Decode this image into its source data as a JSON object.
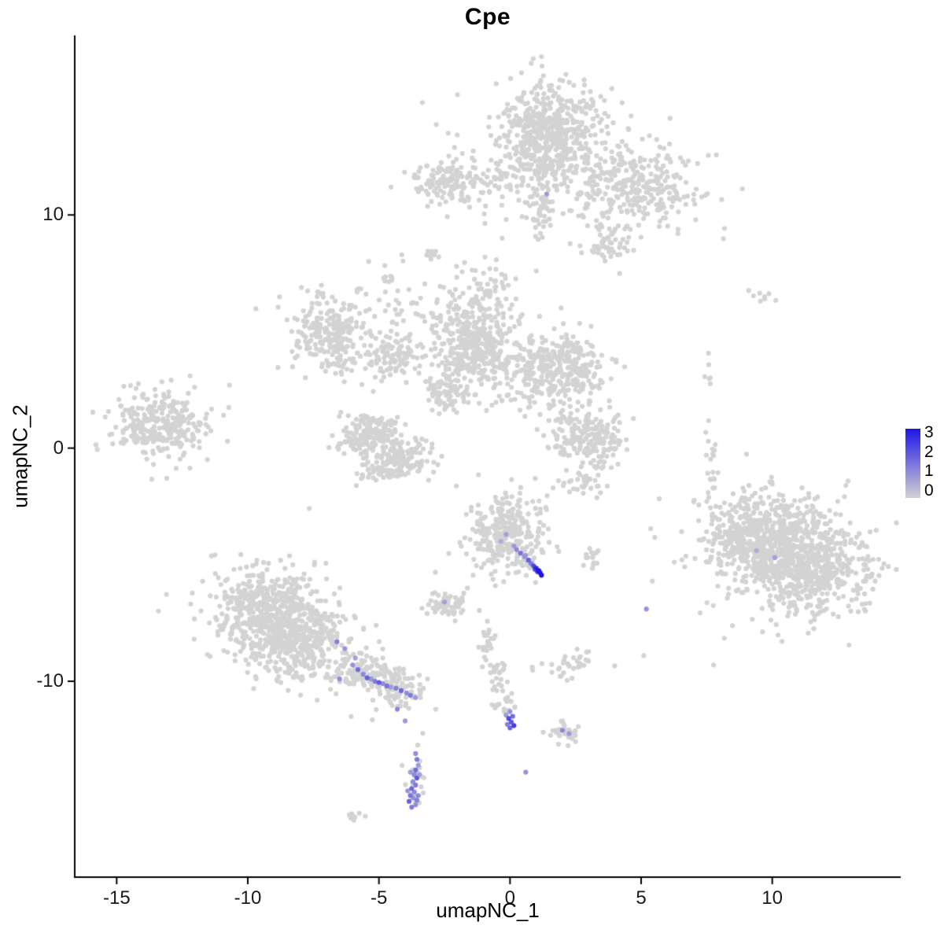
{
  "legend": {
    "labels": [
      "3",
      "2",
      "1",
      "0"
    ]
  },
  "chart_data": {
    "type": "scatter",
    "title": "Cpe",
    "xlabel": "umapNC_1",
    "ylabel": "umapNC_2",
    "xlim": [
      -16.6,
      14.9
    ],
    "ylim": [
      -18.4,
      17.7
    ],
    "x_ticks": [
      -15,
      -10,
      -5,
      0,
      5,
      10
    ],
    "y_ticks": [
      -10,
      0,
      10
    ],
    "grid": false,
    "legend_position": "right",
    "value_range": [
      0,
      3
    ],
    "point_color_zero": "#d3d3d3",
    "point_color_max": "#1e14e6",
    "clusters": [
      {
        "name": "top-main",
        "cx": 1.5,
        "cy": 13.4,
        "sx": 0.95,
        "sy": 1.05,
        "n": 480
      },
      {
        "name": "top-main-halo",
        "cx": 1.3,
        "cy": 13.2,
        "sx": 1.6,
        "sy": 1.5,
        "n": 110
      },
      {
        "name": "top-right",
        "cx": 4.7,
        "cy": 11.2,
        "sx": 1.2,
        "sy": 0.9,
        "n": 300
      },
      {
        "name": "top-right-low",
        "cx": 3.7,
        "cy": 8.7,
        "sx": 0.5,
        "sy": 0.4,
        "n": 55
      },
      {
        "name": "top-neck",
        "cx": 1.2,
        "cy": 10.3,
        "sx": 0.3,
        "sy": 0.8,
        "n": 60
      },
      {
        "name": "top-left-small",
        "cx": -2.5,
        "cy": 11.3,
        "sx": 0.65,
        "sy": 0.5,
        "n": 130
      },
      {
        "name": "top-bridge",
        "cx": -0.8,
        "cy": 11.4,
        "sx": 0.8,
        "sy": 0.3,
        "n": 40
      },
      {
        "name": "mid-left-ring",
        "cx": -6.8,
        "cy": 4.9,
        "sx": 0.75,
        "sy": 0.85,
        "n": 240
      },
      {
        "name": "mid-left-ext",
        "cx": -4.5,
        "cy": 3.9,
        "sx": 0.75,
        "sy": 0.5,
        "n": 110
      },
      {
        "name": "mid-scatter",
        "cx": -4.2,
        "cy": 6.0,
        "sx": 1.0,
        "sy": 0.9,
        "n": 50
      },
      {
        "name": "center-left",
        "cx": -1.3,
        "cy": 4.4,
        "sx": 0.8,
        "sy": 1.05,
        "n": 420
      },
      {
        "name": "center-right",
        "cx": 1.7,
        "cy": 3.4,
        "sx": 0.95,
        "sy": 0.85,
        "n": 360
      },
      {
        "name": "center-top-sparse",
        "cx": -0.8,
        "cy": 6.9,
        "sx": 0.7,
        "sy": 0.5,
        "n": 45
      },
      {
        "name": "center-bridge",
        "cx": -2.5,
        "cy": 2.5,
        "sx": 0.45,
        "sy": 0.6,
        "n": 70
      },
      {
        "name": "lower-mid-left",
        "cx": -5.7,
        "cy": 0.4,
        "sx": 0.55,
        "sy": 0.5,
        "n": 120
      },
      {
        "name": "lower-mid-right",
        "cx": -4.1,
        "cy": -0.4,
        "sx": 0.6,
        "sy": 0.45,
        "n": 130
      },
      {
        "name": "lower-mid-top",
        "cx": -4.9,
        "cy": 0.9,
        "sx": 0.5,
        "sy": 0.3,
        "n": 55
      },
      {
        "name": "lower-mid-bottom",
        "cx": -5.0,
        "cy": -1.0,
        "sx": 0.5,
        "sy": 0.25,
        "n": 45
      },
      {
        "name": "far-left",
        "cx": -13.3,
        "cy": 1.0,
        "sx": 0.95,
        "sy": 0.75,
        "n": 300
      },
      {
        "name": "right-hook-top",
        "cx": 3.0,
        "cy": 0.9,
        "sx": 0.6,
        "sy": 0.4,
        "n": 80
      },
      {
        "name": "right-hook-right",
        "cx": 3.3,
        "cy": -0.1,
        "sx": 0.45,
        "sy": 0.5,
        "n": 70
      },
      {
        "name": "right-hook-left",
        "cx": 2.2,
        "cy": 0.3,
        "sx": 0.4,
        "sy": 0.5,
        "n": 50
      },
      {
        "name": "right-hook-tail",
        "cx": 2.7,
        "cy": -1.5,
        "sx": 0.4,
        "sy": 0.3,
        "n": 30
      },
      {
        "name": "right-column",
        "cx": 7.7,
        "cy": -0.8,
        "sx": 0.13,
        "sy": 1.1,
        "n": 22
      },
      {
        "name": "right-column-top",
        "cx": 7.65,
        "cy": 3.0,
        "sx": 0.12,
        "sy": 0.4,
        "n": 6
      },
      {
        "name": "big-right-a",
        "cx": 10.0,
        "cy": -3.8,
        "sx": 1.2,
        "sy": 1.0,
        "n": 520
      },
      {
        "name": "big-right-b",
        "cx": 11.3,
        "cy": -5.3,
        "sx": 1.2,
        "sy": 1.0,
        "n": 470
      },
      {
        "name": "big-right-halo",
        "cx": 10.6,
        "cy": -4.5,
        "sx": 1.9,
        "sy": 1.6,
        "n": 130
      },
      {
        "name": "big-right-west",
        "cx": 8.6,
        "cy": -3.7,
        "sx": 0.5,
        "sy": 0.6,
        "n": 70
      },
      {
        "name": "bottom-left-a",
        "cx": -9.3,
        "cy": -6.9,
        "sx": 0.9,
        "sy": 0.85,
        "n": 380
      },
      {
        "name": "bottom-left-b",
        "cx": -8.0,
        "cy": -8.3,
        "sx": 0.9,
        "sy": 0.9,
        "n": 360
      },
      {
        "name": "bottom-left-halo",
        "cx": -8.7,
        "cy": -7.6,
        "sx": 1.5,
        "sy": 1.4,
        "n": 130
      },
      {
        "name": "bl-trail-a",
        "cx": -5.6,
        "cy": -9.5,
        "sx": 0.55,
        "sy": 0.45,
        "n": 100
      },
      {
        "name": "bl-trail-b",
        "cx": -4.3,
        "cy": -10.3,
        "sx": 0.55,
        "sy": 0.4,
        "n": 90
      },
      {
        "name": "mid-bottom",
        "cx": -0.2,
        "cy": -3.7,
        "sx": 0.75,
        "sy": 0.8,
        "n": 300
      },
      {
        "name": "mid-bottom-small",
        "cx": -2.4,
        "cy": -6.7,
        "sx": 0.45,
        "sy": 0.3,
        "n": 60
      },
      {
        "name": "mid-trail-1",
        "cx": -0.9,
        "cy": -8.2,
        "sx": 0.18,
        "sy": 0.55,
        "n": 25
      },
      {
        "name": "mid-trail-2",
        "cx": -0.45,
        "cy": -9.9,
        "sx": 0.2,
        "sy": 0.6,
        "n": 25
      },
      {
        "name": "mid-trail-3",
        "cx": -0.1,
        "cy": -11.0,
        "sx": 0.15,
        "sy": 0.4,
        "n": 15
      },
      {
        "name": "small-right-bottom",
        "cx": 2.1,
        "cy": -12.2,
        "sx": 0.3,
        "sy": 0.22,
        "n": 28
      },
      {
        "name": "right-of-trail",
        "cx": 2.3,
        "cy": -9.3,
        "sx": 0.5,
        "sy": 0.35,
        "n": 35
      },
      {
        "name": "bottom-strand-gray",
        "cx": -3.6,
        "cy": -14.3,
        "sx": 0.2,
        "sy": 0.75,
        "n": 20
      },
      {
        "name": "tiny-bottom",
        "cx": -6.0,
        "cy": -15.8,
        "sx": 0.18,
        "sy": 0.12,
        "n": 7
      },
      {
        "name": "near-hook-pair",
        "cx": 3.2,
        "cy": -4.7,
        "sx": 0.28,
        "sy": 0.22,
        "n": 14
      },
      {
        "name": "tiny-b1",
        "cx": -3.0,
        "cy": 8.4,
        "sx": 0.18,
        "sy": 0.14,
        "n": 9
      },
      {
        "name": "tiny-b2",
        "cx": -4.7,
        "cy": 7.2,
        "sx": 0.12,
        "sy": 0.1,
        "n": 5
      },
      {
        "name": "tiny-b3",
        "cx": 9.5,
        "cy": 6.5,
        "sx": 0.25,
        "sy": 0.15,
        "n": 8
      }
    ],
    "singles": [
      [
        -10.7,
        2.7
      ],
      [
        5.1,
        -8.9
      ],
      [
        -0.3,
        9.0
      ],
      [
        1.0,
        7.6
      ],
      [
        -12.2,
        3.1
      ],
      [
        6.4,
        9.2
      ]
    ],
    "expressed_points_xyv": [
      [
        -0.35,
        -4.0,
        0.6
      ],
      [
        -0.15,
        -3.7,
        0.8
      ],
      [
        0.15,
        -4.2,
        0.9
      ],
      [
        0.25,
        -4.35,
        1.2
      ],
      [
        0.4,
        -4.5,
        1.5
      ],
      [
        0.55,
        -4.65,
        1.0
      ],
      [
        0.6,
        -4.6,
        0.8
      ],
      [
        0.7,
        -4.8,
        1.8
      ],
      [
        0.8,
        -4.95,
        1.4
      ],
      [
        0.9,
        -5.05,
        2.2
      ],
      [
        0.95,
        -5.2,
        2.0
      ],
      [
        1.0,
        -5.15,
        2.8
      ],
      [
        1.05,
        -5.3,
        2.6
      ],
      [
        1.1,
        -5.25,
        3.0
      ],
      [
        1.15,
        -5.35,
        2.9
      ],
      [
        1.2,
        -5.45,
        3.0
      ],
      [
        -6.6,
        -8.3,
        1.3
      ],
      [
        -6.3,
        -8.6,
        1.0
      ],
      [
        -5.9,
        -9.0,
        0.8
      ],
      [
        -6.0,
        -9.3,
        1.0
      ],
      [
        -5.8,
        -9.5,
        1.6
      ],
      [
        -5.6,
        -9.7,
        1.2
      ],
      [
        -5.45,
        -9.85,
        1.8
      ],
      [
        -5.3,
        -9.9,
        1.0
      ],
      [
        -5.15,
        -10.0,
        1.4
      ],
      [
        -5.0,
        -10.05,
        1.9
      ],
      [
        -4.85,
        -10.1,
        1.1
      ],
      [
        -4.7,
        -10.2,
        1.5
      ],
      [
        -4.55,
        -10.25,
        0.9
      ],
      [
        -4.35,
        -10.3,
        1.3
      ],
      [
        -4.15,
        -10.4,
        1.7
      ],
      [
        -3.95,
        -10.5,
        1.1
      ],
      [
        -3.8,
        -10.6,
        1.4
      ],
      [
        -3.6,
        -10.7,
        0.9
      ],
      [
        -4.3,
        -11.2,
        1.2
      ],
      [
        -4.0,
        -11.7,
        0.9
      ],
      [
        -6.5,
        -9.9,
        1.1
      ],
      [
        -3.6,
        -13.1,
        1.1
      ],
      [
        -3.55,
        -13.35,
        1.4
      ],
      [
        -3.5,
        -13.6,
        0.9
      ],
      [
        -3.6,
        -13.8,
        1.6
      ],
      [
        -3.45,
        -14.0,
        0.8
      ],
      [
        -3.65,
        -14.0,
        1.2
      ],
      [
        -3.55,
        -14.15,
        1.9
      ],
      [
        -3.7,
        -14.3,
        1.1
      ],
      [
        -3.6,
        -14.45,
        1.4
      ],
      [
        -3.75,
        -14.6,
        1.7
      ],
      [
        -3.9,
        -14.7,
        1.0
      ],
      [
        -3.65,
        -14.75,
        1.2
      ],
      [
        -3.5,
        -14.9,
        1.2
      ],
      [
        -3.8,
        -14.9,
        1.5
      ],
      [
        -3.7,
        -15.0,
        1.0
      ],
      [
        -3.85,
        -15.15,
        1.8
      ],
      [
        -3.55,
        -15.1,
        1.3
      ],
      [
        -3.6,
        -15.3,
        1.1
      ],
      [
        -3.75,
        -15.4,
        1.4
      ],
      [
        -3.8,
        -13.9,
        0.9
      ],
      [
        0.0,
        -11.3,
        1.0
      ],
      [
        -0.15,
        -11.45,
        0.9
      ],
      [
        0.1,
        -11.5,
        1.6
      ],
      [
        -0.05,
        -11.6,
        2.2
      ],
      [
        0.05,
        -11.75,
        1.9
      ],
      [
        -0.1,
        -11.85,
        1.3
      ],
      [
        0.15,
        -11.9,
        2.4
      ],
      [
        0.0,
        -12.0,
        1.7
      ],
      [
        1.4,
        10.9,
        0.9
      ],
      [
        -2.5,
        -6.6,
        0.8
      ],
      [
        5.2,
        -6.9,
        1.0
      ],
      [
        9.4,
        -4.4,
        0.6
      ],
      [
        10.1,
        -4.7,
        0.8
      ],
      [
        2.0,
        -12.1,
        1.2
      ],
      [
        2.25,
        -12.25,
        0.9
      ],
      [
        0.6,
        -13.9,
        1.0
      ]
    ]
  }
}
